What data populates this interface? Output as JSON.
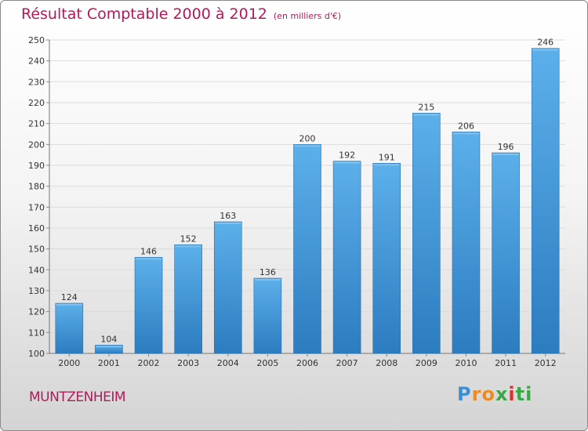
{
  "chart_data": {
    "type": "bar",
    "title": "Résultat Comptable 2000 à 2012",
    "subtitle": "(en milliers d'€)",
    "categories": [
      "2000",
      "2001",
      "2002",
      "2003",
      "2004",
      "2005",
      "2006",
      "2007",
      "2008",
      "2009",
      "2010",
      "2011",
      "2012"
    ],
    "values": [
      124,
      104,
      146,
      152,
      163,
      136,
      200,
      192,
      191,
      215,
      206,
      196,
      246
    ],
    "ylim": [
      100,
      250
    ],
    "yticks": [
      100,
      110,
      120,
      130,
      140,
      150,
      160,
      170,
      180,
      190,
      200,
      210,
      220,
      230,
      240,
      250
    ],
    "grid": true,
    "legend": "none",
    "bar_color": "#3a93d6",
    "bar_color_light": "#5cb0ea",
    "bar_color_dark": "#2c7cc0"
  },
  "footer": {
    "city": "MUNTZENHEIM",
    "logo": "Proxiti"
  }
}
